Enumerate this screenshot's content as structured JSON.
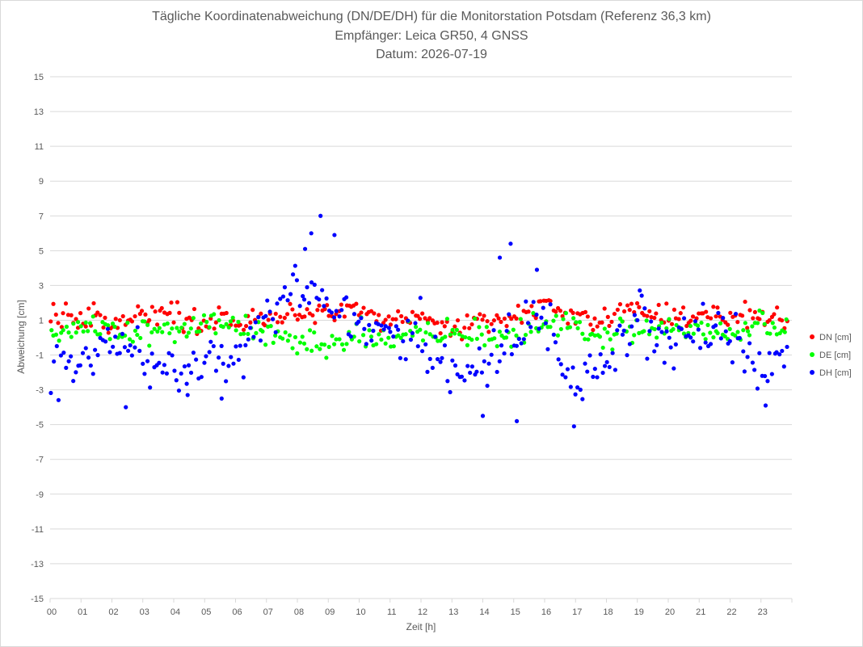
{
  "chart_data": {
    "type": "scatter",
    "title": [
      "Tägliche Koordinatenabweichung (DN/DE/DH) für die Monitorstation Potsdam (Referenz 36,3 km)",
      "Empfänger: Leica GR50, 4 GNSS",
      "Datum: 2026-07-19"
    ],
    "xlabel": "Zeit [h]",
    "ylabel": "Abweichung [cm]",
    "xlim": [
      0,
      24
    ],
    "ylim": [
      -15,
      15
    ],
    "x_ticks": [
      "00",
      "01",
      "02",
      "03",
      "04",
      "05",
      "06",
      "07",
      "08",
      "09",
      "10",
      "11",
      "12",
      "13",
      "14",
      "15",
      "16",
      "17",
      "18",
      "19",
      "20",
      "21",
      "22",
      "23"
    ],
    "y_ticks": [
      15,
      13,
      11,
      9,
      7,
      5,
      3,
      1,
      -1,
      -3,
      -5,
      -7,
      -9,
      -11,
      -13,
      -15
    ],
    "grid": true,
    "legend_position": "right",
    "series": [
      {
        "name": "DN [cm]",
        "color": "#ff0000",
        "profile": [
          [
            0,
            1.1
          ],
          [
            1,
            1.3
          ],
          [
            2,
            0.7
          ],
          [
            3,
            1.4
          ],
          [
            4,
            1.1
          ],
          [
            5,
            1.0
          ],
          [
            6,
            1.2
          ],
          [
            7,
            1.1
          ],
          [
            8,
            1.5
          ],
          [
            9,
            1.6
          ],
          [
            10,
            1.6
          ],
          [
            11,
            0.9
          ],
          [
            12,
            1.3
          ],
          [
            13,
            0.4
          ],
          [
            14,
            1.2
          ],
          [
            15,
            0.9
          ],
          [
            16,
            2.0
          ],
          [
            17,
            1.3
          ],
          [
            18,
            1.2
          ],
          [
            19,
            1.6
          ],
          [
            20,
            1.1
          ],
          [
            21,
            1.2
          ],
          [
            22,
            1.4
          ],
          [
            23,
            1.1
          ],
          [
            23.9,
            0.8
          ]
        ],
        "spread": 0.6
      },
      {
        "name": "DE [cm]",
        "color": "#00ff00",
        "profile": [
          [
            0,
            0.4
          ],
          [
            1,
            0.5
          ],
          [
            2,
            0.6
          ],
          [
            3,
            0.4
          ],
          [
            4,
            0.2
          ],
          [
            5,
            0.8
          ],
          [
            6,
            0.5
          ],
          [
            7,
            0.4
          ],
          [
            8,
            -0.4
          ],
          [
            9,
            -0.5
          ],
          [
            10,
            0.3
          ],
          [
            11,
            0.0
          ],
          [
            12,
            0.5
          ],
          [
            13,
            0.3
          ],
          [
            14,
            0.0
          ],
          [
            15,
            0.2
          ],
          [
            16,
            0.6
          ],
          [
            17,
            0.9
          ],
          [
            18,
            0.3
          ],
          [
            19,
            0.4
          ],
          [
            20,
            0.4
          ],
          [
            21,
            0.5
          ],
          [
            22,
            0.2
          ],
          [
            23,
            0.8
          ],
          [
            23.9,
            0.5
          ]
        ],
        "spread": 0.7
      },
      {
        "name": "DH [cm]",
        "color": "#0000ff",
        "profile": [
          [
            0,
            -1.5
          ],
          [
            1,
            -1.5
          ],
          [
            2,
            -0.8
          ],
          [
            3,
            -0.8
          ],
          [
            4,
            -2.0
          ],
          [
            5,
            -1.0
          ],
          [
            6,
            -1.5
          ],
          [
            7,
            1.0
          ],
          [
            8,
            3.5
          ],
          [
            9,
            2.0
          ],
          [
            10,
            0.5
          ],
          [
            11,
            -0.3
          ],
          [
            12,
            0.2
          ],
          [
            13,
            -2.0
          ],
          [
            14,
            -1.5
          ],
          [
            15,
            0.3
          ],
          [
            16,
            1.0
          ],
          [
            17,
            -2.8
          ],
          [
            18,
            -1.5
          ],
          [
            19,
            1.2
          ],
          [
            20,
            -0.5
          ],
          [
            21,
            0.5
          ],
          [
            22,
            0.0
          ],
          [
            23,
            -2.0
          ],
          [
            23.9,
            -0.5
          ]
        ],
        "spread": 1.4,
        "highlights": [
          [
            2.45,
            -4.0
          ],
          [
            8.75,
            7.0
          ],
          [
            8.45,
            6.0
          ],
          [
            8.25,
            5.1
          ],
          [
            9.2,
            5.9
          ],
          [
            14.55,
            4.6
          ],
          [
            14.9,
            5.4
          ],
          [
            15.75,
            3.9
          ],
          [
            15.1,
            -4.8
          ],
          [
            16.95,
            -5.1
          ],
          [
            14.0,
            -4.5
          ],
          [
            4.45,
            -3.3
          ],
          [
            5.55,
            -3.5
          ],
          [
            23.15,
            -3.9
          ]
        ]
      }
    ]
  }
}
